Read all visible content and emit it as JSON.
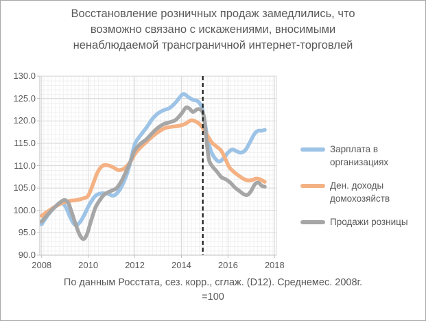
{
  "title_lines": [
    "Восстановление розничных продаж замедлились, что",
    "возможно связано с искажениями, вносимыми",
    "ненаблюдаемой трансграничной интернет-торговлей"
  ],
  "caption": {
    "line1": "По данным Росстата, сез. корр., сглаж. (D12). Среднемес. 2008г.",
    "line2": "=100"
  },
  "colors": {
    "blue": "#9DC3E6",
    "orange": "#F4B183",
    "gray": "#A6A6A6",
    "text": "#595959",
    "grid_major": "#D9D9D9",
    "axis": "#BFBFBF",
    "dashed": "#1a1a1a"
  },
  "chart_data": {
    "type": "line",
    "title": "Восстановление розничных продаж замедлились, что возможно связано с искажениями, вносимыми ненаблюдаемой трансграничной интернет-торговлей",
    "note": "По данным Росстата, сез. корр., сглаж. (D12). Среднемес. 2008г. =100",
    "grid": true,
    "legend_position": "right",
    "x_axis": {
      "range": [
        2007.92,
        2018.08
      ],
      "ticks": [
        2008,
        2010,
        2012,
        2014,
        2016,
        2018
      ]
    },
    "y_axis": {
      "range": [
        90,
        130
      ],
      "ticks": [
        130,
        125,
        120,
        115,
        110,
        105,
        100,
        95,
        90
      ],
      "tick_decimals": 1
    },
    "annotation_line": {
      "x": 2014.92,
      "style": "dashed-vertical",
      "color_key": "dashed"
    },
    "series": [
      {
        "name": "Зарплата в организациях",
        "color_key": "blue",
        "points": [
          [
            2008.0,
            96.9
          ],
          [
            2008.3,
            99.2
          ],
          [
            2008.6,
            100.9
          ],
          [
            2008.85,
            101.7
          ],
          [
            2009.05,
            100.6
          ],
          [
            2009.25,
            98.2
          ],
          [
            2009.45,
            96.7
          ],
          [
            2009.65,
            97.4
          ],
          [
            2009.85,
            99.2
          ],
          [
            2010.05,
            101.3
          ],
          [
            2010.3,
            103.2
          ],
          [
            2010.55,
            103.8
          ],
          [
            2010.85,
            103.7
          ],
          [
            2011.1,
            103.3
          ],
          [
            2011.35,
            104.6
          ],
          [
            2011.6,
            107.3
          ],
          [
            2011.8,
            110.6
          ],
          [
            2012.0,
            114.8
          ],
          [
            2012.25,
            116.8
          ],
          [
            2012.5,
            118.5
          ],
          [
            2012.75,
            120.4
          ],
          [
            2013.0,
            121.7
          ],
          [
            2013.25,
            122.4
          ],
          [
            2013.5,
            122.9
          ],
          [
            2013.75,
            124.1
          ],
          [
            2014.0,
            125.7
          ],
          [
            2014.12,
            126.0
          ],
          [
            2014.3,
            125.3
          ],
          [
            2014.5,
            124.7
          ],
          [
            2014.7,
            124.4
          ],
          [
            2014.88,
            123.0
          ],
          [
            2015.0,
            119.8
          ],
          [
            2015.12,
            116.2
          ],
          [
            2015.28,
            113.1
          ],
          [
            2015.45,
            111.6
          ],
          [
            2015.62,
            110.9
          ],
          [
            2015.8,
            111.6
          ],
          [
            2016.0,
            112.9
          ],
          [
            2016.18,
            113.6
          ],
          [
            2016.38,
            113.2
          ],
          [
            2016.55,
            112.9
          ],
          [
            2016.75,
            113.5
          ],
          [
            2016.95,
            115.3
          ],
          [
            2017.15,
            117.2
          ],
          [
            2017.3,
            117.8
          ],
          [
            2017.45,
            117.8
          ],
          [
            2017.58,
            118.0
          ]
        ]
      },
      {
        "name": "Ден. доходы домохозяйств",
        "color_key": "orange",
        "points": [
          [
            2008.0,
            98.8
          ],
          [
            2008.3,
            99.9
          ],
          [
            2008.6,
            100.9
          ],
          [
            2008.9,
            101.7
          ],
          [
            2009.2,
            102.1
          ],
          [
            2009.5,
            102.3
          ],
          [
            2009.8,
            102.7
          ],
          [
            2010.0,
            103.3
          ],
          [
            2010.2,
            105.8
          ],
          [
            2010.4,
            108.5
          ],
          [
            2010.6,
            109.9
          ],
          [
            2010.8,
            110.1
          ],
          [
            2011.05,
            109.7
          ],
          [
            2011.3,
            109.0
          ],
          [
            2011.55,
            109.4
          ],
          [
            2011.8,
            110.8
          ],
          [
            2012.0,
            112.6
          ],
          [
            2012.25,
            114.1
          ],
          [
            2012.5,
            115.3
          ],
          [
            2012.75,
            116.5
          ],
          [
            2013.0,
            117.5
          ],
          [
            2013.3,
            118.4
          ],
          [
            2013.6,
            118.7
          ],
          [
            2013.9,
            118.9
          ],
          [
            2014.15,
            119.3
          ],
          [
            2014.4,
            120.1
          ],
          [
            2014.6,
            119.9
          ],
          [
            2014.8,
            119.2
          ],
          [
            2014.95,
            118.2
          ],
          [
            2015.1,
            116.9
          ],
          [
            2015.3,
            115.2
          ],
          [
            2015.5,
            114.3
          ],
          [
            2015.7,
            113.4
          ],
          [
            2015.88,
            111.6
          ],
          [
            2016.05,
            109.7
          ],
          [
            2016.25,
            108.6
          ],
          [
            2016.45,
            107.8
          ],
          [
            2016.65,
            107.1
          ],
          [
            2016.85,
            106.7
          ],
          [
            2017.05,
            106.8
          ],
          [
            2017.2,
            107.1
          ],
          [
            2017.35,
            107.0
          ],
          [
            2017.5,
            106.6
          ],
          [
            2017.58,
            106.4
          ]
        ]
      },
      {
        "name": "Продажи розницы",
        "color_key": "gray",
        "points": [
          [
            2008.0,
            97.5
          ],
          [
            2008.3,
            99.3
          ],
          [
            2008.6,
            100.9
          ],
          [
            2008.85,
            102.0
          ],
          [
            2009.0,
            102.3
          ],
          [
            2009.15,
            101.6
          ],
          [
            2009.3,
            99.4
          ],
          [
            2009.5,
            96.3
          ],
          [
            2009.65,
            94.4
          ],
          [
            2009.8,
            93.6
          ],
          [
            2009.95,
            94.7
          ],
          [
            2010.1,
            97.3
          ],
          [
            2010.3,
            100.5
          ],
          [
            2010.5,
            102.3
          ],
          [
            2010.7,
            103.6
          ],
          [
            2011.0,
            104.4
          ],
          [
            2011.2,
            104.9
          ],
          [
            2011.4,
            106.3
          ],
          [
            2011.6,
            108.4
          ],
          [
            2011.8,
            110.8
          ],
          [
            2012.0,
            113.4
          ],
          [
            2012.25,
            114.9
          ],
          [
            2012.5,
            115.9
          ],
          [
            2012.75,
            117.3
          ],
          [
            2013.0,
            118.5
          ],
          [
            2013.25,
            119.3
          ],
          [
            2013.5,
            119.7
          ],
          [
            2013.75,
            120.2
          ],
          [
            2014.0,
            121.6
          ],
          [
            2014.2,
            123.0
          ],
          [
            2014.35,
            122.7
          ],
          [
            2014.5,
            122.0
          ],
          [
            2014.68,
            122.6
          ],
          [
            2014.85,
            122.4
          ],
          [
            2014.97,
            120.8
          ],
          [
            2015.08,
            115.5
          ],
          [
            2015.18,
            111.4
          ],
          [
            2015.32,
            109.9
          ],
          [
            2015.52,
            108.7
          ],
          [
            2015.72,
            107.4
          ],
          [
            2015.92,
            106.9
          ],
          [
            2016.1,
            106.2
          ],
          [
            2016.3,
            105.1
          ],
          [
            2016.5,
            104.3
          ],
          [
            2016.68,
            103.6
          ],
          [
            2016.85,
            103.5
          ],
          [
            2017.0,
            104.4
          ],
          [
            2017.15,
            105.8
          ],
          [
            2017.3,
            106.2
          ],
          [
            2017.45,
            105.5
          ],
          [
            2017.58,
            105.3
          ]
        ]
      }
    ]
  }
}
